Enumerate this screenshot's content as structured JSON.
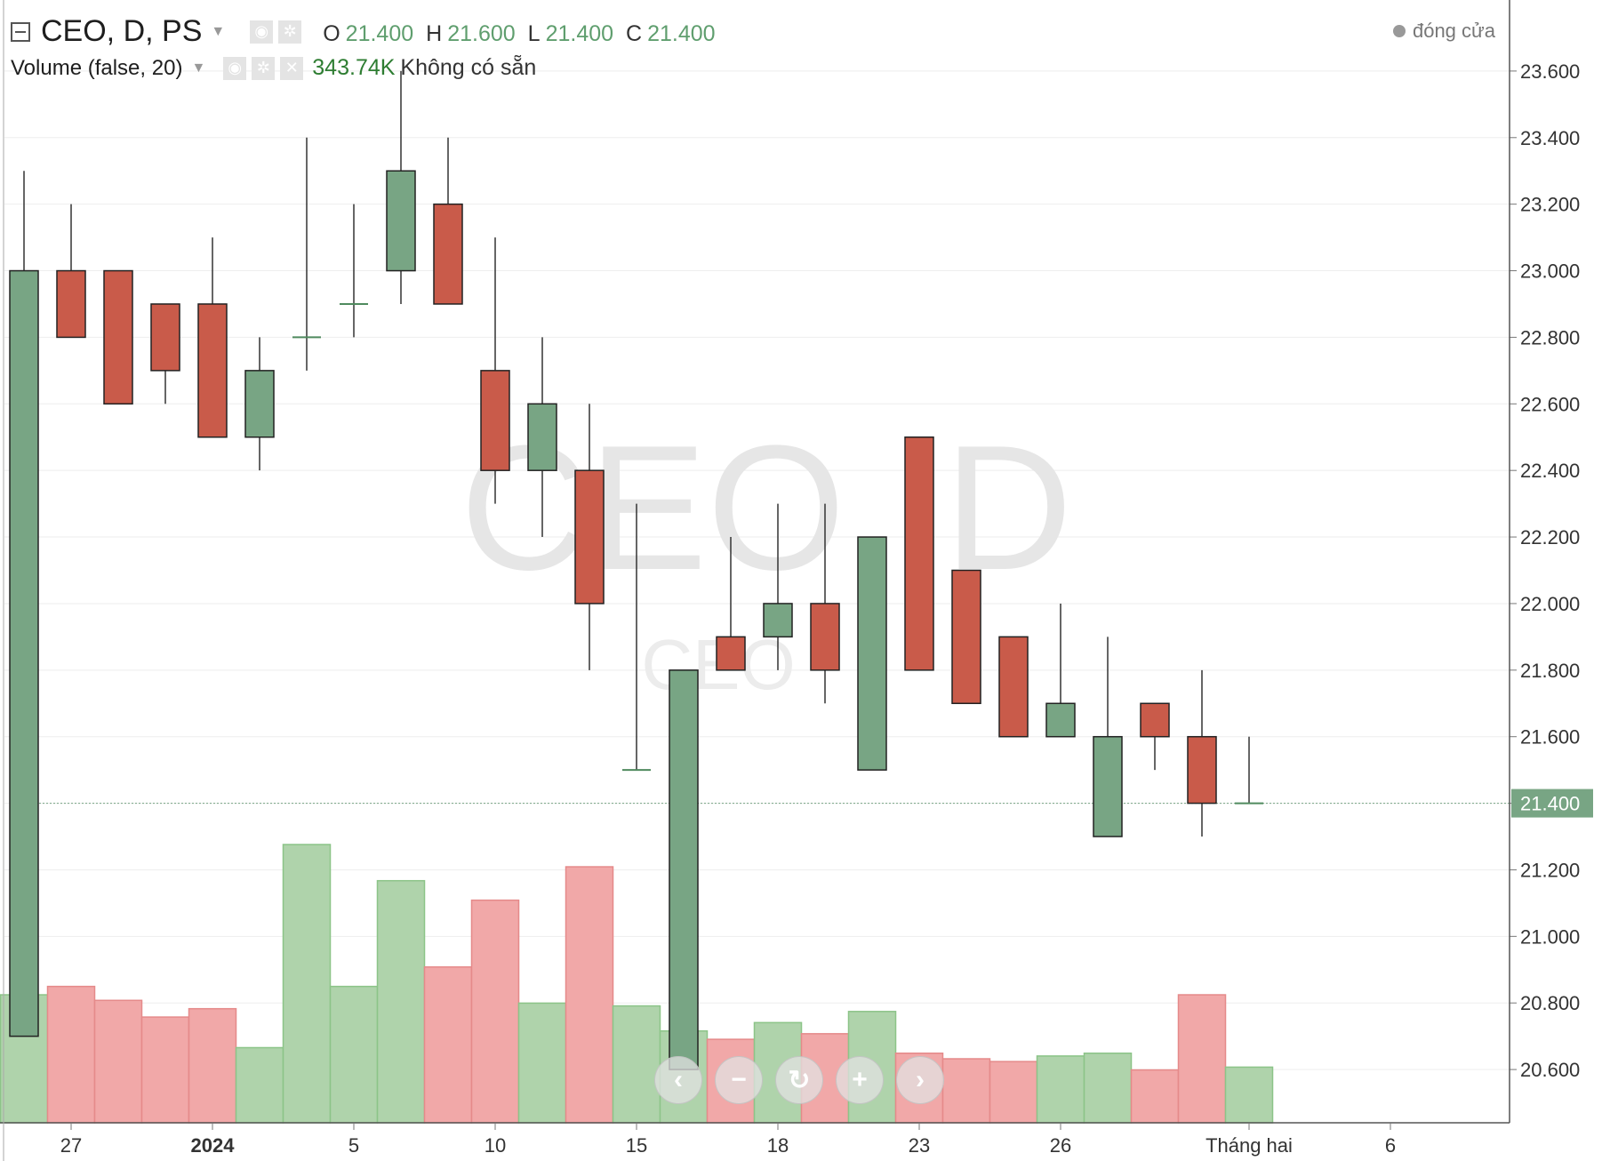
{
  "header": {
    "symbol_line": "CEO, D, PS",
    "ohlc": [
      {
        "k": "O",
        "v": "21.400"
      },
      {
        "k": "H",
        "v": "21.600"
      },
      {
        "k": "L",
        "v": "21.400"
      },
      {
        "k": "C",
        "v": "21.400"
      }
    ],
    "volume_label": "Volume (false, 20)",
    "volume_value": "343.74K",
    "volume_na": "Không có sẵn",
    "status": "đóng cửa"
  },
  "watermark": {
    "big": "CEO, D",
    "small": "CEO"
  },
  "colors": {
    "up_fill": "#78a584",
    "down_fill": "#c95b4a",
    "vol_up": "#afd3ab",
    "vol_down": "#f1a8a8",
    "grid": "#eeeeee",
    "last_price_badge": "#78a584"
  },
  "icons": [
    "menu-icon",
    "eye-icon",
    "gear-icon",
    "close-icon",
    "chevron-left-icon",
    "zoom-out-icon",
    "reset-icon",
    "zoom-in-icon",
    "chevron-right-icon"
  ],
  "chart_data": {
    "type": "candlestick",
    "y_ticks": [
      "20.600",
      "20.800",
      "21.000",
      "21.200",
      "21.400",
      "21.600",
      "21.800",
      "22.000",
      "22.200",
      "22.400",
      "22.600",
      "22.800",
      "23.000",
      "23.200",
      "23.400",
      "23.600"
    ],
    "ylim": [
      20.44,
      23.76
    ],
    "last_price": "21.400",
    "x_tick_labels": [
      {
        "bar": 1,
        "label": "27",
        "bold": false
      },
      {
        "bar": 4,
        "label": "2024",
        "bold": true
      },
      {
        "bar": 7,
        "label": "5",
        "bold": false
      },
      {
        "bar": 10,
        "label": "10",
        "bold": false
      },
      {
        "bar": 13,
        "label": "15",
        "bold": false
      },
      {
        "bar": 16,
        "label": "18",
        "bold": false
      },
      {
        "bar": 19,
        "label": "23",
        "bold": false
      },
      {
        "bar": 22,
        "label": "26",
        "bold": false
      },
      {
        "bar": 26,
        "label": "Tháng hai",
        "bold": false
      },
      {
        "bar": 29,
        "label": "6",
        "bold": false
      }
    ],
    "candles": [
      {
        "o": 20.7,
        "h": 23.3,
        "l": 20.7,
        "c": 23.0
      },
      {
        "o": 23.0,
        "h": 23.2,
        "l": 22.8,
        "c": 22.8
      },
      {
        "o": 23.0,
        "h": 23.0,
        "l": 22.6,
        "c": 22.6
      },
      {
        "o": 22.9,
        "h": 22.9,
        "l": 22.6,
        "c": 22.7
      },
      {
        "o": 22.9,
        "h": 23.1,
        "l": 22.5,
        "c": 22.5
      },
      {
        "o": 22.5,
        "h": 22.8,
        "l": 22.4,
        "c": 22.7
      },
      {
        "o": 22.8,
        "h": 23.4,
        "l": 22.7,
        "c": 22.8
      },
      {
        "o": 22.9,
        "h": 23.2,
        "l": 22.8,
        "c": 22.9
      },
      {
        "o": 23.0,
        "h": 23.6,
        "l": 22.9,
        "c": 23.3
      },
      {
        "o": 23.2,
        "h": 23.4,
        "l": 22.9,
        "c": 22.9
      },
      {
        "o": 22.7,
        "h": 23.1,
        "l": 22.3,
        "c": 22.4
      },
      {
        "o": 22.4,
        "h": 22.8,
        "l": 22.2,
        "c": 22.6
      },
      {
        "o": 22.4,
        "h": 22.6,
        "l": 21.8,
        "c": 22.0
      },
      {
        "o": 21.5,
        "h": 22.3,
        "l": 21.5,
        "c": 21.5
      },
      {
        "o": 20.6,
        "h": 21.8,
        "l": 20.6,
        "c": 21.8
      },
      {
        "o": 21.9,
        "h": 22.2,
        "l": 21.8,
        "c": 21.8
      },
      {
        "o": 21.9,
        "h": 22.3,
        "l": 21.8,
        "c": 22.0
      },
      {
        "o": 22.0,
        "h": 22.3,
        "l": 21.7,
        "c": 21.8
      },
      {
        "o": 21.5,
        "h": 22.2,
        "l": 21.5,
        "c": 22.2
      },
      {
        "o": 22.5,
        "h": 22.5,
        "l": 21.8,
        "c": 21.8
      },
      {
        "o": 22.1,
        "h": 22.1,
        "l": 21.7,
        "c": 21.7
      },
      {
        "o": 21.9,
        "h": 21.9,
        "l": 21.6,
        "c": 21.6
      },
      {
        "o": 21.6,
        "h": 22.0,
        "l": 21.6,
        "c": 21.7
      },
      {
        "o": 21.3,
        "h": 21.9,
        "l": 21.3,
        "c": 21.6
      },
      {
        "o": 21.7,
        "h": 21.7,
        "l": 21.5,
        "c": 21.6
      },
      {
        "o": 21.6,
        "h": 21.8,
        "l": 21.3,
        "c": 21.4
      },
      {
        "o": 21.4,
        "h": 21.6,
        "l": 21.4,
        "c": 21.4
      }
    ],
    "volume_bars": [
      {
        "v": 0.46,
        "dir": "up"
      },
      {
        "v": 0.49,
        "dir": "down"
      },
      {
        "v": 0.44,
        "dir": "down"
      },
      {
        "v": 0.38,
        "dir": "down"
      },
      {
        "v": 0.41,
        "dir": "down"
      },
      {
        "v": 0.27,
        "dir": "up"
      },
      {
        "v": 1.0,
        "dir": "up"
      },
      {
        "v": 0.49,
        "dir": "up"
      },
      {
        "v": 0.87,
        "dir": "up"
      },
      {
        "v": 0.56,
        "dir": "down"
      },
      {
        "v": 0.8,
        "dir": "down"
      },
      {
        "v": 0.43,
        "dir": "up"
      },
      {
        "v": 0.92,
        "dir": "down"
      },
      {
        "v": 0.42,
        "dir": "up"
      },
      {
        "v": 0.33,
        "dir": "up"
      },
      {
        "v": 0.3,
        "dir": "down"
      },
      {
        "v": 0.36,
        "dir": "up"
      },
      {
        "v": 0.32,
        "dir": "down"
      },
      {
        "v": 0.4,
        "dir": "up"
      },
      {
        "v": 0.25,
        "dir": "down"
      },
      {
        "v": 0.23,
        "dir": "down"
      },
      {
        "v": 0.22,
        "dir": "down"
      },
      {
        "v": 0.24,
        "dir": "up"
      },
      {
        "v": 0.25,
        "dir": "up"
      },
      {
        "v": 0.19,
        "dir": "down"
      },
      {
        "v": 0.46,
        "dir": "down"
      },
      {
        "v": 0.2,
        "dir": "up"
      }
    ]
  }
}
